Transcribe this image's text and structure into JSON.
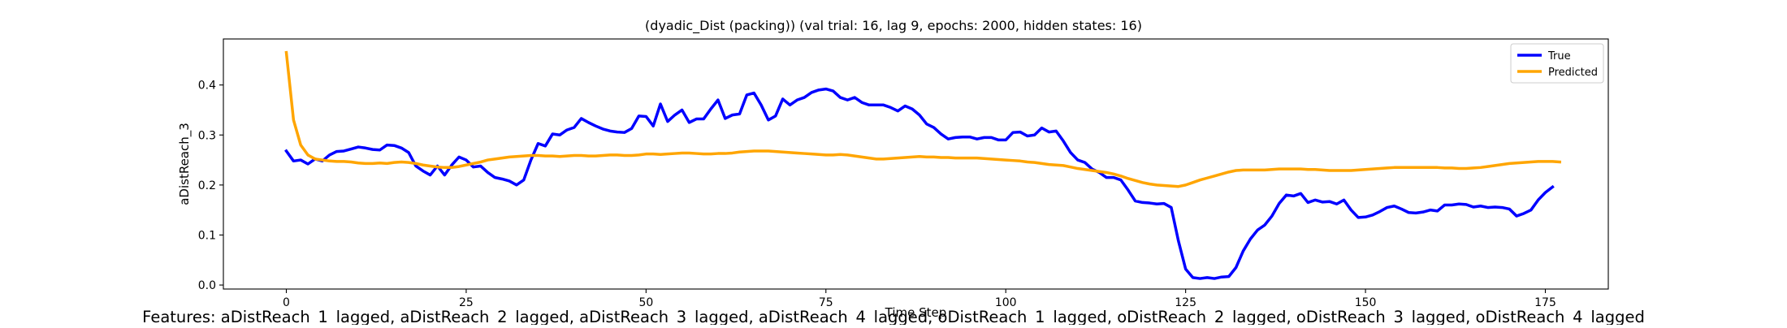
{
  "chart_data": {
    "type": "line",
    "title": "(dyadic_Dist (packing)) (val trial: 16, lag 9, epochs: 2000, hidden states: 16)",
    "xlabel": "Time Step",
    "ylabel": "aDistReach_3",
    "xlim": [
      -8.75,
      183.75
    ],
    "ylim": [
      -0.008,
      0.492
    ],
    "xticks": [
      0,
      25,
      50,
      75,
      100,
      125,
      150,
      175
    ],
    "yticks": [
      0.0,
      0.1,
      0.2,
      0.3,
      0.4
    ],
    "ytick_labels": [
      "0.0",
      "0.1",
      "0.2",
      "0.3",
      "0.4"
    ],
    "grid": false,
    "legend_position": "top-right",
    "series": [
      {
        "name": "True",
        "color": "#0000ff",
        "values": [
          0.268,
          0.248,
          0.25,
          0.242,
          0.252,
          0.248,
          0.26,
          0.267,
          0.268,
          0.272,
          0.276,
          0.274,
          0.271,
          0.27,
          0.28,
          0.279,
          0.274,
          0.265,
          0.238,
          0.228,
          0.22,
          0.238,
          0.22,
          0.24,
          0.256,
          0.25,
          0.236,
          0.238,
          0.225,
          0.215,
          0.212,
          0.208,
          0.2,
          0.21,
          0.25,
          0.283,
          0.278,
          0.302,
          0.3,
          0.31,
          0.315,
          0.333,
          0.325,
          0.318,
          0.312,
          0.308,
          0.306,
          0.305,
          0.313,
          0.338,
          0.337,
          0.318,
          0.362,
          0.327,
          0.34,
          0.35,
          0.325,
          0.332,
          0.332,
          0.352,
          0.37,
          0.333,
          0.34,
          0.342,
          0.38,
          0.384,
          0.36,
          0.33,
          0.338,
          0.372,
          0.36,
          0.37,
          0.375,
          0.385,
          0.39,
          0.392,
          0.388,
          0.375,
          0.37,
          0.375,
          0.365,
          0.36,
          0.36,
          0.36,
          0.355,
          0.348,
          0.358,
          0.352,
          0.34,
          0.322,
          0.315,
          0.302,
          0.292,
          0.295,
          0.296,
          0.296,
          0.292,
          0.295,
          0.295,
          0.29,
          0.29,
          0.305,
          0.306,
          0.298,
          0.3,
          0.314,
          0.306,
          0.308,
          0.288,
          0.265,
          0.25,
          0.245,
          0.232,
          0.225,
          0.215,
          0.215,
          0.21,
          0.19,
          0.168,
          0.165,
          0.164,
          0.162,
          0.163,
          0.155,
          0.088,
          0.032,
          0.015,
          0.013,
          0.015,
          0.013,
          0.016,
          0.017,
          0.035,
          0.068,
          0.092,
          0.11,
          0.12,
          0.138,
          0.163,
          0.18,
          0.178,
          0.183,
          0.165,
          0.17,
          0.166,
          0.167,
          0.162,
          0.17,
          0.15,
          0.135,
          0.136,
          0.14,
          0.147,
          0.155,
          0.158,
          0.152,
          0.145,
          0.144,
          0.146,
          0.15,
          0.148,
          0.16,
          0.16,
          0.162,
          0.161,
          0.156,
          0.158,
          0.155,
          0.156,
          0.155,
          0.152,
          0.138,
          0.143,
          0.15,
          0.17,
          0.185,
          0.196
        ]
      },
      {
        "name": "Predicted",
        "color": "#ffa500",
        "values": [
          0.465,
          0.33,
          0.28,
          0.26,
          0.252,
          0.25,
          0.248,
          0.247,
          0.247,
          0.246,
          0.244,
          0.243,
          0.243,
          0.244,
          0.243,
          0.245,
          0.246,
          0.245,
          0.243,
          0.24,
          0.238,
          0.236,
          0.235,
          0.235,
          0.237,
          0.24,
          0.243,
          0.246,
          0.25,
          0.252,
          0.254,
          0.256,
          0.257,
          0.258,
          0.259,
          0.259,
          0.258,
          0.258,
          0.257,
          0.258,
          0.259,
          0.259,
          0.258,
          0.258,
          0.259,
          0.26,
          0.26,
          0.259,
          0.259,
          0.26,
          0.262,
          0.262,
          0.261,
          0.262,
          0.263,
          0.264,
          0.264,
          0.263,
          0.262,
          0.262,
          0.263,
          0.263,
          0.264,
          0.266,
          0.267,
          0.268,
          0.268,
          0.268,
          0.267,
          0.266,
          0.265,
          0.264,
          0.263,
          0.262,
          0.261,
          0.26,
          0.26,
          0.261,
          0.26,
          0.258,
          0.256,
          0.254,
          0.252,
          0.252,
          0.253,
          0.254,
          0.255,
          0.256,
          0.257,
          0.256,
          0.256,
          0.255,
          0.255,
          0.254,
          0.254,
          0.254,
          0.254,
          0.253,
          0.252,
          0.251,
          0.25,
          0.249,
          0.248,
          0.246,
          0.245,
          0.243,
          0.241,
          0.24,
          0.239,
          0.236,
          0.233,
          0.231,
          0.229,
          0.227,
          0.225,
          0.222,
          0.218,
          0.213,
          0.209,
          0.205,
          0.202,
          0.2,
          0.199,
          0.198,
          0.197,
          0.2,
          0.205,
          0.21,
          0.214,
          0.218,
          0.222,
          0.226,
          0.229,
          0.23,
          0.23,
          0.23,
          0.23,
          0.231,
          0.232,
          0.232,
          0.232,
          0.232,
          0.231,
          0.231,
          0.23,
          0.229,
          0.229,
          0.229,
          0.229,
          0.23,
          0.231,
          0.232,
          0.233,
          0.234,
          0.235,
          0.235,
          0.235,
          0.235,
          0.235,
          0.235,
          0.235,
          0.234,
          0.234,
          0.233,
          0.233,
          0.234,
          0.235,
          0.237,
          0.239,
          0.241,
          0.243,
          0.244,
          0.245,
          0.246,
          0.247,
          0.247,
          0.247,
          0.246
        ]
      }
    ]
  },
  "footer": {
    "features_text": "Features: aDistReach_1_lagged, aDistReach_2_lagged, aDistReach_3_lagged, aDistReach_4_lagged, oDistReach_1_lagged, oDistReach_2_lagged, oDistReach_3_lagged, oDistReach_4_lagged"
  }
}
